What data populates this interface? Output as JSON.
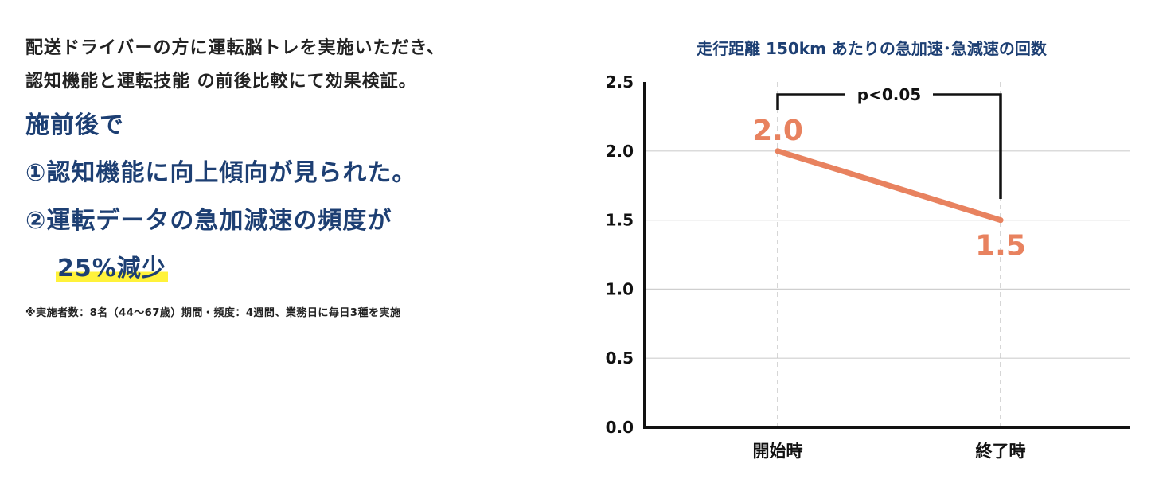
{
  "left_text": {
    "intro_line1": "配送ドライバーの方に運転脳トレを実施いただき、",
    "intro_line2": "認知機能と運転技能 の前後比較にて効果検証。",
    "result_heading": "施前後で",
    "result_item1": "①認知機能に向上傾向が見られた。",
    "result_item2": "②運転データの急加減速の頻度が",
    "result_item2_highlight": "25%減少",
    "footnote": "※実施者数：8名（44〜67歳）期間・頻度：4週間、業務日に毎日3種を実施"
  },
  "colors": {
    "heading_blue": "#1d3f73",
    "series_orange": "#e8825f",
    "highlight_yellow": "#fff23a"
  },
  "chart_data": {
    "type": "line",
    "title": "走行距離 150km あたりの急加速･急減速の回数",
    "xlabel": "",
    "ylabel": "",
    "categories": [
      "開始時",
      "終了時"
    ],
    "series": [
      {
        "values": [
          2.0,
          1.5
        ],
        "data_labels": [
          "2.0",
          "1.5"
        ]
      }
    ],
    "ylim": [
      0,
      2.5
    ],
    "y_ticks": [
      0.0,
      0.5,
      1.0,
      1.5,
      2.0,
      2.5
    ],
    "y_tick_labels": [
      "0.0",
      "0.5",
      "1.0",
      "1.5",
      "2.0",
      "2.5"
    ],
    "grid": "horizontal",
    "significance_annotation": "p<0.05"
  }
}
